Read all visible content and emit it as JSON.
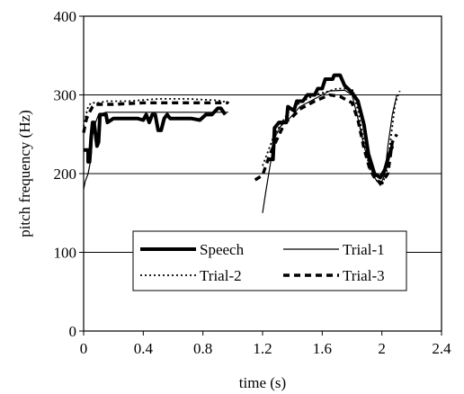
{
  "chart_data": {
    "type": "line",
    "title": "",
    "xlabel": "time (s)",
    "ylabel": "pitch frequency (Hz)",
    "xlim": [
      0,
      2.4
    ],
    "ylim": [
      0,
      400
    ],
    "x_ticks": [
      {
        "value": 0,
        "label": "0"
      },
      {
        "value": 0.4,
        "label": "0.4"
      },
      {
        "value": 0.8,
        "label": "0.8"
      },
      {
        "value": 1.2,
        "label": "1.2"
      },
      {
        "value": 1.6,
        "label": "1.6"
      },
      {
        "value": 2.0,
        "label": "2"
      },
      {
        "value": 2.4,
        "label": "2.4"
      }
    ],
    "y_ticks": [
      {
        "value": 0,
        "label": "0"
      },
      {
        "value": 100,
        "label": "100"
      },
      {
        "value": 200,
        "label": "200"
      },
      {
        "value": 300,
        "label": "300"
      },
      {
        "value": 400,
        "label": "400"
      }
    ],
    "gridlines_y": [
      100,
      200,
      300
    ],
    "legend_position": "bottom-center",
    "series": [
      {
        "name": "Speech",
        "style": "solid-thick",
        "segments": [
          [
            [
              0.0,
              230
            ],
            [
              0.03,
              230
            ],
            [
              0.03,
              215
            ],
            [
              0.04,
              215
            ],
            [
              0.05,
              245
            ],
            [
              0.06,
              265
            ],
            [
              0.07,
              265
            ],
            [
              0.09,
              235
            ],
            [
              0.1,
              240
            ],
            [
              0.11,
              275
            ],
            [
              0.15,
              275
            ],
            [
              0.16,
              265
            ],
            [
              0.2,
              270
            ],
            [
              0.28,
              270
            ],
            [
              0.36,
              270
            ],
            [
              0.4,
              268
            ],
            [
              0.42,
              275
            ],
            [
              0.44,
              265
            ],
            [
              0.46,
              275
            ],
            [
              0.48,
              275
            ],
            [
              0.5,
              255
            ],
            [
              0.52,
              255
            ],
            [
              0.54,
              270
            ],
            [
              0.56,
              275
            ],
            [
              0.58,
              270
            ],
            [
              0.66,
              270
            ],
            [
              0.72,
              270
            ],
            [
              0.78,
              268
            ],
            [
              0.82,
              275
            ],
            [
              0.86,
              275
            ],
            [
              0.9,
              283
            ],
            [
              0.92,
              283
            ],
            [
              0.95,
              275
            ]
          ],
          [
            [
              1.23,
              218
            ],
            [
              1.27,
              218
            ],
            [
              1.28,
              258
            ],
            [
              1.31,
              265
            ],
            [
              1.36,
              265
            ],
            [
              1.37,
              285
            ],
            [
              1.41,
              280
            ],
            [
              1.43,
              292
            ],
            [
              1.47,
              292
            ],
            [
              1.5,
              300
            ],
            [
              1.55,
              300
            ],
            [
              1.57,
              308
            ],
            [
              1.6,
              308
            ],
            [
              1.62,
              320
            ],
            [
              1.67,
              320
            ],
            [
              1.68,
              325
            ],
            [
              1.72,
              325
            ],
            [
              1.75,
              312
            ],
            [
              1.8,
              303
            ],
            [
              1.84,
              292
            ],
            [
              1.88,
              262
            ],
            [
              1.91,
              225
            ],
            [
              1.95,
              200
            ],
            [
              1.99,
              195
            ],
            [
              2.02,
              205
            ],
            [
              2.05,
              225
            ],
            [
              2.07,
              235
            ]
          ]
        ]
      },
      {
        "name": "Trial-1",
        "style": "solid-thin",
        "segments": [
          [
            [
              0.0,
              180
            ],
            [
              0.01,
              190
            ],
            [
              0.03,
              200
            ],
            [
              0.05,
              220
            ],
            [
              0.06,
              250
            ],
            [
              0.08,
              265
            ],
            [
              0.1,
              275
            ],
            [
              0.15,
              278
            ],
            [
              0.3,
              278
            ],
            [
              0.5,
              278
            ],
            [
              0.7,
              278
            ],
            [
              0.9,
              278
            ],
            [
              0.97,
              278
            ]
          ],
          [
            [
              1.2,
              150
            ],
            [
              1.22,
              175
            ],
            [
              1.25,
              210
            ],
            [
              1.28,
              245
            ],
            [
              1.32,
              260
            ],
            [
              1.38,
              270
            ],
            [
              1.45,
              285
            ],
            [
              1.55,
              295
            ],
            [
              1.65,
              305
            ],
            [
              1.75,
              306
            ],
            [
              1.8,
              300
            ],
            [
              1.84,
              270
            ],
            [
              1.88,
              235
            ],
            [
              1.92,
              210
            ],
            [
              1.95,
              195
            ],
            [
              1.99,
              185
            ],
            [
              2.02,
              200
            ],
            [
              2.04,
              235
            ],
            [
              2.07,
              275
            ],
            [
              2.1,
              300
            ]
          ]
        ]
      },
      {
        "name": "Trial-2",
        "style": "dotted",
        "segments": [
          [
            [
              0.0,
              260
            ],
            [
              0.01,
              270
            ],
            [
              0.03,
              285
            ],
            [
              0.05,
              290
            ],
            [
              0.1,
              290
            ],
            [
              0.15,
              292
            ],
            [
              0.3,
              292
            ],
            [
              0.5,
              295
            ],
            [
              0.7,
              295
            ],
            [
              0.9,
              293
            ],
            [
              0.98,
              290
            ]
          ],
          [
            [
              1.2,
              210
            ],
            [
              1.23,
              225
            ],
            [
              1.27,
              245
            ],
            [
              1.32,
              262
            ],
            [
              1.38,
              280
            ],
            [
              1.45,
              290
            ],
            [
              1.55,
              300
            ],
            [
              1.65,
              305
            ],
            [
              1.7,
              308
            ],
            [
              1.8,
              308
            ],
            [
              1.84,
              280
            ],
            [
              1.88,
              240
            ],
            [
              1.92,
              205
            ],
            [
              1.96,
              192
            ],
            [
              2.0,
              185
            ],
            [
              2.03,
              200
            ],
            [
              2.06,
              245
            ],
            [
              2.09,
              290
            ],
            [
              2.12,
              305
            ]
          ]
        ]
      },
      {
        "name": "Trial-3",
        "style": "dashed",
        "segments": [
          [
            [
              0.0,
              252
            ],
            [
              0.01,
              262
            ],
            [
              0.02,
              270
            ],
            [
              0.04,
              278
            ],
            [
              0.06,
              285
            ],
            [
              0.08,
              288
            ],
            [
              0.2,
              288
            ],
            [
              0.4,
              290
            ],
            [
              0.6,
              290
            ],
            [
              0.8,
              290
            ],
            [
              0.97,
              290
            ]
          ],
          [
            [
              1.15,
              192
            ],
            [
              1.2,
              198
            ],
            [
              1.25,
              225
            ],
            [
              1.3,
              245
            ],
            [
              1.35,
              265
            ],
            [
              1.4,
              272
            ],
            [
              1.45,
              282
            ],
            [
              1.55,
              292
            ],
            [
              1.65,
              300
            ],
            [
              1.72,
              298
            ],
            [
              1.8,
              290
            ],
            [
              1.84,
              268
            ],
            [
              1.88,
              232
            ],
            [
              1.92,
              205
            ],
            [
              1.96,
              192
            ],
            [
              2.0,
              188
            ],
            [
              2.04,
              200
            ],
            [
              2.07,
              240
            ],
            [
              2.1,
              250
            ]
          ]
        ]
      }
    ]
  }
}
